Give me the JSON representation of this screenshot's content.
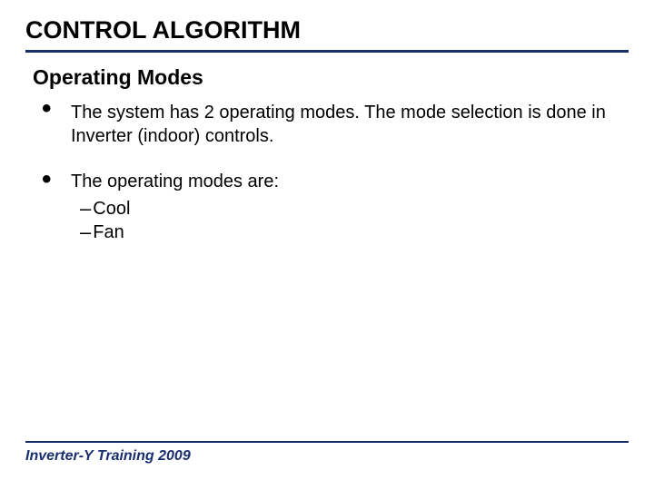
{
  "colors": {
    "accent": "#1a2e6e",
    "text": "#000000",
    "background": "#ffffff"
  },
  "typography": {
    "title_fontsize": 27,
    "subtitle_fontsize": 23,
    "body_fontsize": 20,
    "footer_fontsize": 16
  },
  "title": "CONTROL ALGORITHM",
  "subtitle": "Operating Modes",
  "bullets": [
    {
      "text": "The system has 2 operating modes. The mode selection is done in Inverter (indoor) controls."
    },
    {
      "text": "The operating modes are:",
      "subitems": [
        "Cool",
        "Fan"
      ]
    }
  ],
  "footer": "Inverter-Y Training 2009"
}
